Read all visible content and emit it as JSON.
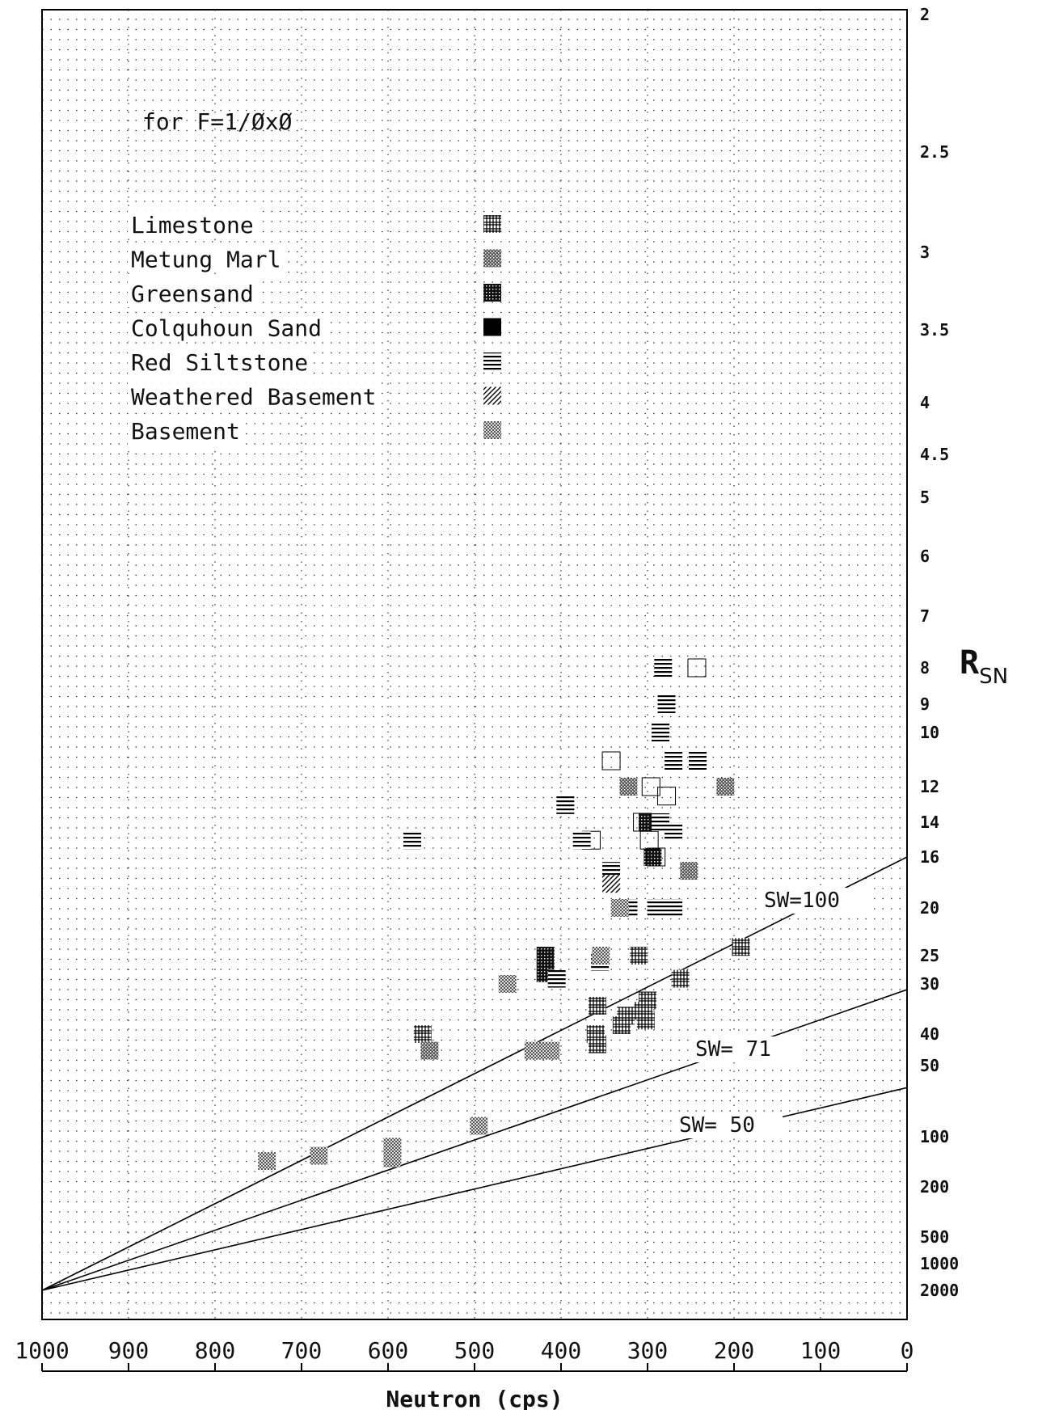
{
  "chart_data": {
    "type": "scatter",
    "annotation": "for F=1/ØxØ",
    "xlabel": "Neutron (cps)",
    "ylabel_main": "R",
    "ylabel_sub": "SN",
    "x_axis": {
      "xlim": [
        1000,
        0
      ],
      "ticks": [
        1000,
        900,
        800,
        700,
        600,
        500,
        400,
        300,
        200,
        100,
        0
      ],
      "tick_labels": [
        "1000",
        "900",
        "800",
        "700",
        "600",
        "500",
        "400",
        "300",
        "200",
        "100",
        "0"
      ]
    },
    "y_axis": {
      "scale": "nonlinear",
      "ticks": [
        2,
        2.5,
        3,
        3.5,
        4,
        4.5,
        5,
        6,
        7,
        8,
        9,
        10,
        12,
        14,
        16,
        20,
        25,
        30,
        40,
        50,
        100,
        200,
        500,
        1000,
        2000
      ],
      "tick_labels": [
        "2",
        "2.5",
        "3",
        "3.5",
        "4",
        "4.5",
        "5",
        "6",
        "7",
        "8",
        "9",
        "10",
        "12",
        "14",
        "16",
        "20",
        "25",
        "30",
        "40",
        "50",
        "100",
        "200",
        "500",
        "1000",
        "2000"
      ]
    },
    "grid": true,
    "legend": {
      "placement": "top-left",
      "entries": [
        {
          "label": "Limestone",
          "pattern": "hash"
        },
        {
          "label": "Metung Marl",
          "pattern": "stipple"
        },
        {
          "label": "Greensand",
          "pattern": "grid"
        },
        {
          "label": "Colquhoun Sand",
          "pattern": "solid"
        },
        {
          "label": "Red Siltstone",
          "pattern": "lines"
        },
        {
          "label": "Weathered Basement",
          "pattern": "diagonal"
        },
        {
          "label": "Basement",
          "pattern": "cross"
        }
      ]
    },
    "lines": [
      {
        "name": "SW=100",
        "label": "SW=100",
        "from": [
          1000,
          2000
        ],
        "to": [
          0,
          16
        ]
      },
      {
        "name": "SW=71",
        "label": "SW= 71",
        "from": [
          1000,
          2000
        ],
        "to": [
          0,
          31
        ]
      },
      {
        "name": "SW=50",
        "label": "SW= 50",
        "from": [
          1000,
          2000
        ],
        "to": [
          0,
          62
        ]
      }
    ],
    "series": [
      {
        "name": "Limestone",
        "pattern": "hash",
        "points": [
          [
            560,
            40
          ],
          [
            358,
            34
          ],
          [
            360,
            40
          ],
          [
            358,
            43
          ],
          [
            330,
            38
          ],
          [
            325,
            36
          ],
          [
            300,
            33
          ],
          [
            305,
            35
          ],
          [
            302,
            37
          ],
          [
            310,
            25
          ],
          [
            262,
            29
          ],
          [
            192,
            24
          ]
        ]
      },
      {
        "name": "Metung Marl",
        "pattern": "stipple",
        "points": [
          [
            552,
            45
          ],
          [
            322,
            12
          ],
          [
            210,
            12
          ],
          [
            252,
            17
          ]
        ]
      },
      {
        "name": "Greensand",
        "pattern": "grid",
        "points": [
          [
            418,
            25
          ],
          [
            418,
            28
          ],
          [
            294,
            16
          ],
          [
            300,
            14
          ]
        ]
      },
      {
        "name": "Colquhoun Sand",
        "pattern": "solid",
        "points": [
          [
            243,
            8
          ],
          [
            342,
            11
          ],
          [
            365,
            15
          ],
          [
            296,
            12
          ],
          [
            278,
            12.5
          ],
          [
            306,
            14
          ],
          [
            298,
            15
          ],
          [
            290,
            16
          ]
        ]
      },
      {
        "name": "Red Siltstone",
        "pattern": "lines",
        "points": [
          [
            572,
            15
          ],
          [
            282,
            8
          ],
          [
            278,
            9
          ],
          [
            285,
            10
          ],
          [
            270,
            11
          ],
          [
            242,
            11
          ],
          [
            395,
            13
          ],
          [
            376,
            15
          ],
          [
            285,
            14
          ],
          [
            270,
            14.5
          ],
          [
            342,
            17
          ],
          [
            322,
            20
          ],
          [
            290,
            20
          ],
          [
            270,
            20
          ],
          [
            355,
            26
          ],
          [
            405,
            29
          ]
        ]
      },
      {
        "name": "Weathered Basement",
        "pattern": "diagonal",
        "points": [
          [
            342,
            18
          ]
        ]
      },
      {
        "name": "Basement",
        "pattern": "cross",
        "points": [
          [
            740,
            140
          ],
          [
            680,
            130
          ],
          [
            595,
            115
          ],
          [
            595,
            135
          ],
          [
            495,
            90
          ],
          [
            462,
            30
          ],
          [
            432,
            45
          ],
          [
            412,
            45
          ],
          [
            332,
            20
          ],
          [
            354,
            25
          ]
        ]
      }
    ]
  }
}
